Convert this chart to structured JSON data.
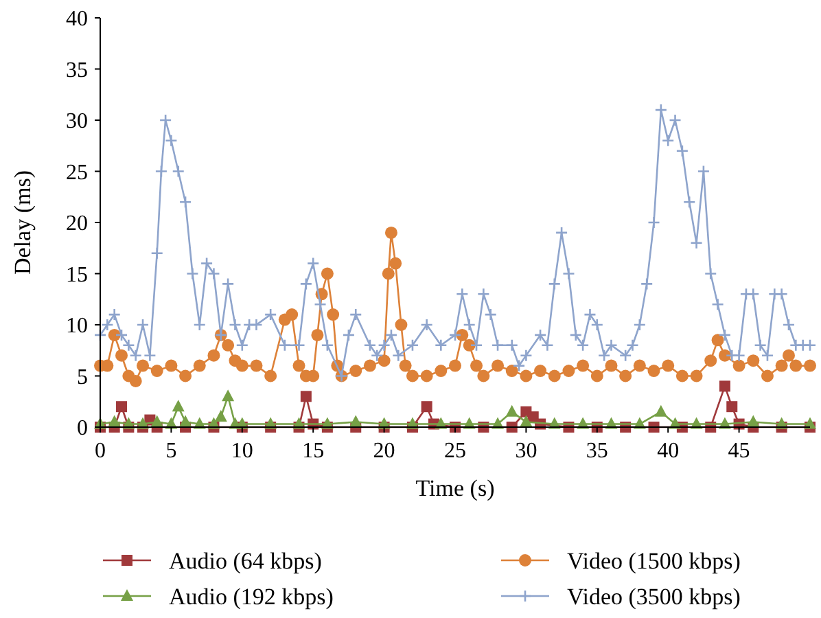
{
  "chart_data": {
    "type": "line",
    "xlabel": "Time (s)",
    "ylabel": "Delay (ms)",
    "xlim": [
      0,
      50
    ],
    "ylim": [
      0,
      40
    ],
    "xticks": [
      0,
      5,
      10,
      15,
      20,
      25,
      30,
      35,
      40,
      45
    ],
    "yticks": [
      0,
      5,
      10,
      15,
      20,
      25,
      30,
      35,
      40
    ],
    "grid": false,
    "legend": "bottom",
    "line_style": "solid",
    "series": [
      {
        "name": "Audio (64 kbps)",
        "color": "#a0393b",
        "marker": "square",
        "x": [
          0,
          1,
          1.5,
          2,
          3,
          3.5,
          4,
          6,
          8,
          10,
          12,
          14,
          14.5,
          15,
          16,
          18,
          20,
          22,
          23,
          23.5,
          25,
          27,
          29,
          30,
          30.5,
          31,
          33,
          35,
          37,
          39,
          41,
          43,
          44,
          44.5,
          45,
          46,
          48,
          50
        ],
        "values": [
          0,
          0,
          2,
          0,
          0,
          0.7,
          0,
          0,
          0,
          0,
          0,
          0,
          3,
          0.3,
          0,
          0,
          0,
          0,
          2,
          0.3,
          0,
          0,
          0,
          1.5,
          1,
          0.3,
          0,
          0,
          0,
          0,
          0,
          0,
          4,
          2,
          0.3,
          0,
          0,
          0
        ]
      },
      {
        "name": "Audio (192 kbps)",
        "color": "#76a046",
        "marker": "triangle",
        "x": [
          0,
          1,
          2,
          3,
          4,
          5,
          5.5,
          6,
          7,
          8,
          8.5,
          9,
          9.5,
          10,
          12,
          14,
          16,
          18,
          20,
          22,
          24,
          26,
          28,
          29,
          30,
          32,
          34,
          36,
          38,
          39.5,
          40.5,
          42,
          44,
          46,
          48,
          50
        ],
        "values": [
          0.3,
          0.5,
          0.3,
          0.3,
          0.5,
          0.3,
          2,
          0.5,
          0.3,
          0.3,
          1,
          3,
          0.3,
          0.3,
          0.3,
          0.3,
          0.3,
          0.5,
          0.3,
          0.3,
          0.3,
          0.3,
          0.3,
          1.5,
          0.5,
          0.3,
          0.3,
          0.3,
          0.3,
          1.5,
          0.3,
          0.3,
          0.3,
          0.5,
          0.3,
          0.3
        ]
      },
      {
        "name": "Video (1500 kbps)",
        "color": "#dd8138",
        "marker": "circle",
        "x": [
          0,
          0.5,
          1,
          1.5,
          2,
          2.5,
          3,
          4,
          5,
          6,
          7,
          8,
          8.5,
          9,
          9.5,
          10,
          11,
          12,
          13,
          13.5,
          14,
          14.5,
          15,
          15.3,
          15.6,
          16,
          16.4,
          16.7,
          17,
          18,
          19,
          20,
          20.3,
          20.5,
          20.8,
          21.2,
          21.5,
          22,
          23,
          24,
          25,
          25.5,
          26,
          26.5,
          27,
          28,
          29,
          30,
          31,
          32,
          33,
          34,
          35,
          36,
          37,
          38,
          39,
          40,
          41,
          42,
          43,
          43.5,
          44,
          45,
          46,
          47,
          48,
          48.5,
          49,
          50
        ],
        "values": [
          6,
          6,
          9,
          7,
          5,
          4.5,
          6,
          5.5,
          6,
          5,
          6,
          7,
          9,
          8,
          6.5,
          6,
          6,
          5,
          10.5,
          11,
          6,
          5,
          5,
          9,
          13,
          15,
          11,
          6,
          5,
          5.5,
          6,
          6.5,
          15,
          19,
          16,
          10,
          6,
          5,
          5,
          5.5,
          6,
          9,
          8,
          6,
          5,
          6,
          5.5,
          5,
          5.5,
          5,
          5.5,
          6,
          5,
          6,
          5,
          6,
          5.5,
          6,
          5,
          5,
          6.5,
          8.5,
          7,
          6,
          6.5,
          5,
          6,
          7,
          6,
          6
        ]
      },
      {
        "name": "Video (3500 kbps)",
        "color": "#8ea4cc",
        "marker": "cross",
        "x": [
          0,
          0.5,
          1,
          1.5,
          2,
          2.5,
          3,
          3.5,
          4,
          4.3,
          4.6,
          5,
          5.5,
          6,
          6.5,
          7,
          7.5,
          8,
          8.5,
          9,
          9.5,
          10,
          10.5,
          11,
          12,
          13,
          14,
          14.5,
          15,
          15.5,
          16,
          17,
          17.5,
          18,
          19,
          19.5,
          20,
          20.5,
          21,
          22,
          23,
          24,
          25,
          25.5,
          26,
          26.5,
          27,
          27.5,
          28,
          29,
          29.5,
          30,
          31,
          31.5,
          32,
          32.5,
          33,
          33.5,
          34,
          34.5,
          35,
          35.5,
          36,
          37,
          37.5,
          38,
          38.5,
          39,
          39.5,
          40,
          40.5,
          41,
          41.5,
          42,
          42.5,
          43,
          43.5,
          44,
          44.5,
          45,
          45.5,
          46,
          46.5,
          47,
          47.5,
          48,
          48.5,
          49,
          49.5,
          50
        ],
        "values": [
          9,
          10,
          11,
          9,
          8,
          7,
          10,
          7,
          17,
          25,
          30,
          28,
          25,
          22,
          15,
          10,
          16,
          15,
          9,
          14,
          10,
          8,
          10,
          10,
          11,
          8,
          8,
          14,
          16,
          12,
          8,
          5,
          9,
          11,
          8,
          7,
          8,
          9,
          7,
          8,
          10,
          8,
          9,
          13,
          10,
          8,
          13,
          11,
          8,
          8,
          6,
          7,
          9,
          8,
          14,
          19,
          15,
          9,
          8,
          11,
          10,
          7,
          8,
          7,
          8,
          10,
          14,
          20,
          31,
          28,
          30,
          27,
          22,
          18,
          25,
          15,
          12,
          9,
          7,
          7,
          13,
          13,
          8,
          7,
          13,
          13,
          10,
          8,
          8,
          8
        ]
      }
    ]
  }
}
